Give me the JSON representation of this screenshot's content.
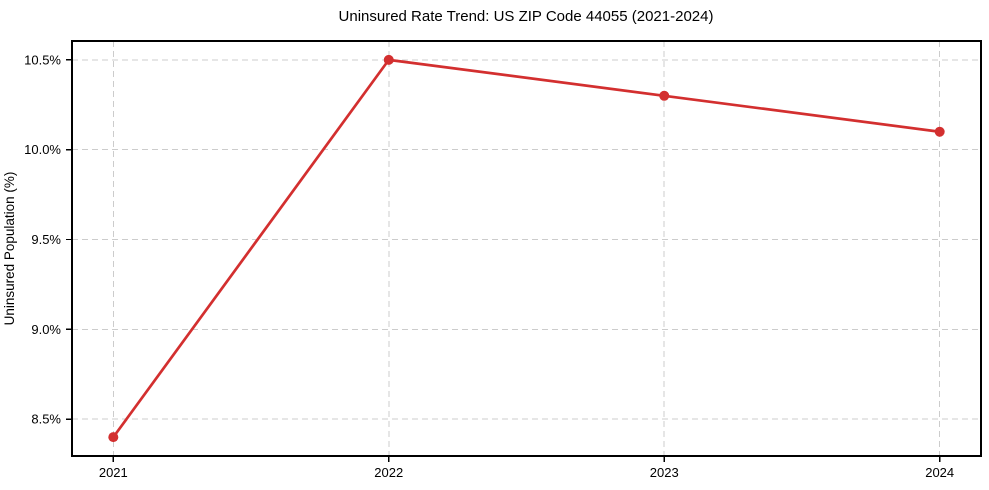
{
  "chart_data": {
    "type": "line",
    "title": "Uninsured Rate Trend: US ZIP Code 44055 (2021-2024)",
    "ylabel": "Uninsured Population (%)",
    "xlabel": "",
    "x": [
      2021,
      2022,
      2023,
      2024
    ],
    "x_tick_labels": [
      "2021",
      "2022",
      "2023",
      "2024"
    ],
    "series": [
      {
        "name": "uninsured-rate",
        "values": [
          8.4,
          10.5,
          10.3,
          10.1
        ]
      }
    ],
    "y_ticks": [
      8.5,
      9.0,
      9.5,
      10.0,
      10.5
    ],
    "y_tick_labels": [
      "8.5%",
      "9.0%",
      "9.5%",
      "10.0%",
      "10.5%"
    ],
    "xlim": [
      2020.85,
      2024.15
    ],
    "ylim": [
      8.295,
      10.605
    ],
    "grid": true,
    "grid_style": "dashed",
    "legend": false,
    "colors": {
      "line": "#d32f2f",
      "marker": "#d32f2f",
      "grid": "#cccccc",
      "axis": "#000000",
      "background": "#ffffff"
    }
  }
}
